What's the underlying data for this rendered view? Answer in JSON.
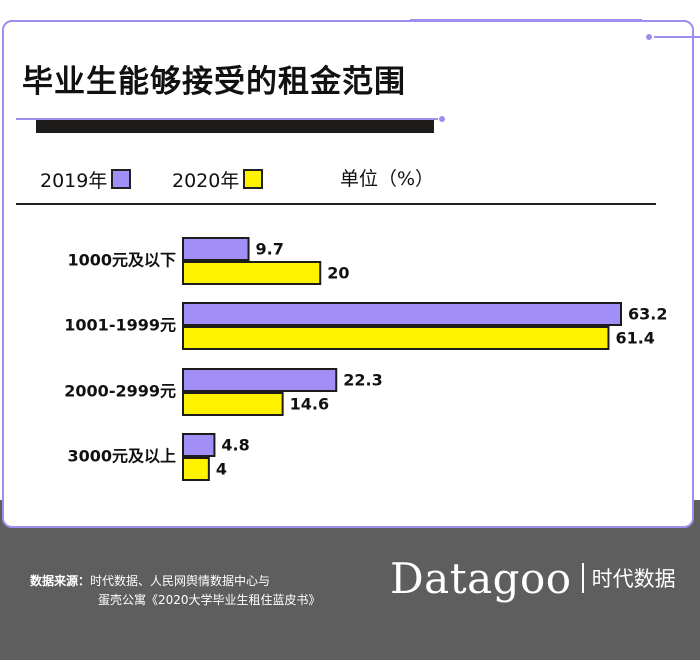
{
  "title": "毕业生能够接受的租金范围",
  "legend": {
    "items": [
      {
        "label": "2019年",
        "color": "#a18ff7"
      },
      {
        "label": "2020年",
        "color": "#fff200"
      }
    ],
    "unit": "单位（%）"
  },
  "chart_data": {
    "type": "bar",
    "orientation": "horizontal",
    "title": "毕业生能够接受的租金范围",
    "unit": "单位（%）",
    "categories": [
      "1000元及以下",
      "1001-1999元",
      "2000-2999元",
      "3000元及以上"
    ],
    "series": [
      {
        "name": "2019年",
        "color": "#a18ff7",
        "values": [
          9.7,
          63.2,
          22.3,
          4.8
        ]
      },
      {
        "name": "2020年",
        "color": "#fff200",
        "values": [
          20,
          61.4,
          14.6,
          4
        ]
      }
    ],
    "value_labels": [
      [
        "9.7",
        "63.2",
        "22.3",
        "4.8"
      ],
      [
        "20",
        "61.4",
        "14.6",
        "4"
      ]
    ],
    "xlim": [
      0,
      63.2
    ],
    "grid": false,
    "legend_position": "top-left"
  },
  "footer": {
    "source_key": "数据来源：",
    "source_line1": "时代数据、人民网舆情数据中心与",
    "source_line2": "蛋壳公寓《2020大学毕业生租住蓝皮书》",
    "brand": "Datagoo",
    "brand_cn": "时代数据"
  }
}
